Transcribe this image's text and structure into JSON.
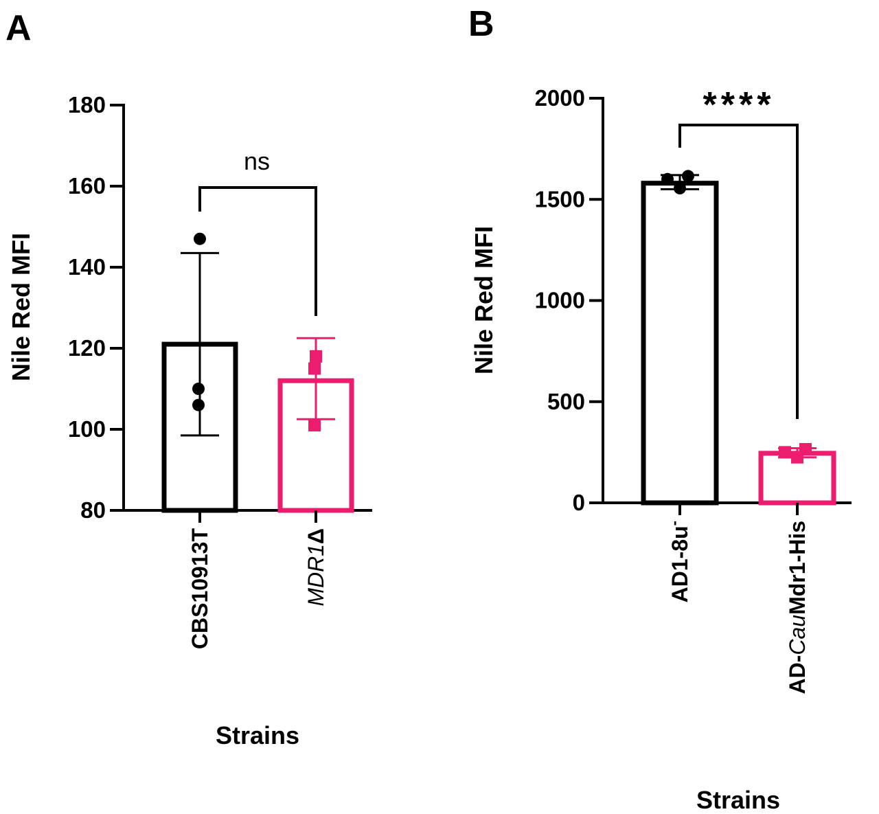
{
  "colors": {
    "black": "#000000",
    "pink": "#ee1c6e"
  },
  "chart_data": [
    {
      "panel": "A",
      "type": "bar",
      "ylabel": "Nile Red MFI",
      "xlabel": "Strains",
      "ylim": [
        80,
        180
      ],
      "yticks": [
        80,
        100,
        120,
        140,
        160,
        180
      ],
      "yticks_labels": [
        "80",
        "100",
        "120",
        "140",
        "160",
        "180"
      ],
      "categories": [
        {
          "name": "CBS10913T",
          "italic": "",
          "rest": "CBS10913T",
          "value": 121,
          "sd_low": 98.5,
          "sd_high": 143.5,
          "color": "#000000",
          "marker": "circle",
          "points": [
            147,
            110,
            106
          ]
        },
        {
          "name": "MDR1Δ",
          "italic": "MDR1",
          "rest": "Δ",
          "value": 112,
          "sd_low": 102.5,
          "sd_high": 122.5,
          "color": "#ee1c6e",
          "marker": "square",
          "points": [
            118,
            115,
            101
          ]
        }
      ],
      "significance": "ns"
    },
    {
      "panel": "B",
      "type": "bar",
      "ylabel": "Nile Red MFI",
      "xlabel": "Strains",
      "ylim": [
        0,
        2000
      ],
      "yticks": [
        0,
        500,
        1000,
        1500,
        2000
      ],
      "yticks_labels": [
        "0",
        "500",
        "1000",
        "1500",
        "2000"
      ],
      "categories": [
        {
          "name": "AD1-8u⁻",
          "prefix": "AD1-8u",
          "italic": "",
          "rest": "",
          "sup": "-",
          "value": 1580,
          "sd_low": 1550,
          "sd_high": 1620,
          "color": "#000000",
          "marker": "circle",
          "points": [
            1615,
            1600,
            1555
          ]
        },
        {
          "name": "AD-CauMdr1-His",
          "prefix": "AD-",
          "italic": "Cau",
          "rest": "Mdr1-His",
          "sup": "",
          "value": 245,
          "sd_low": 225,
          "sd_high": 270,
          "color": "#ee1c6e",
          "marker": "square",
          "points": [
            265,
            250,
            225
          ]
        }
      ],
      "significance": "****"
    }
  ]
}
